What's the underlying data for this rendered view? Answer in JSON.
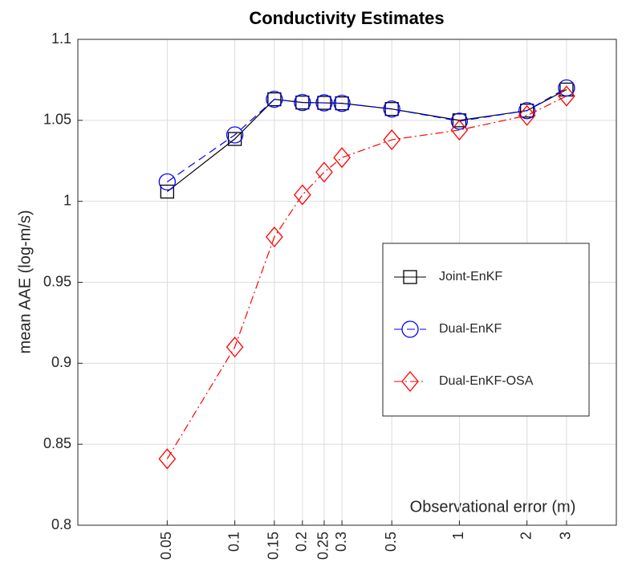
{
  "chart_data": {
    "type": "line",
    "title": "Conductivity Estimates",
    "xlabel": "Observational error (m)",
    "ylabel": "mean AAE (log-m/s)",
    "x": [
      0.05,
      0.1,
      0.15,
      0.2,
      0.25,
      0.3,
      0.5,
      1,
      2,
      3
    ],
    "xscale": "log",
    "xlim": [
      0.02,
      5
    ],
    "xticks": [
      0.05,
      0.1,
      0.15,
      0.2,
      0.25,
      0.3,
      0.5,
      1,
      2,
      3
    ],
    "ylim": [
      0.8,
      1.1
    ],
    "yticks": [
      0.8,
      0.85,
      0.9,
      0.95,
      1,
      1.05,
      1.1
    ],
    "grid": true,
    "series": [
      {
        "name": "Joint-EnKF",
        "color": "#000000",
        "marker": "square",
        "dash": "solid",
        "values": [
          1.006,
          1.0385,
          1.063,
          1.061,
          1.0608,
          1.0605,
          1.057,
          1.05,
          1.056,
          1.069
        ]
      },
      {
        "name": "Dual-EnKF",
        "color": "#0000ff",
        "marker": "circle",
        "dash": "dashed",
        "values": [
          1.012,
          1.041,
          1.063,
          1.061,
          1.0608,
          1.0605,
          1.057,
          1.0495,
          1.056,
          1.07
        ]
      },
      {
        "name": "Dual-EnKF-OSA",
        "color": "#ff0000",
        "marker": "diamond",
        "dash": "dashdot",
        "values": [
          0.841,
          0.91,
          0.978,
          1.004,
          1.018,
          1.027,
          1.038,
          1.044,
          1.053,
          1.065
        ]
      }
    ]
  }
}
